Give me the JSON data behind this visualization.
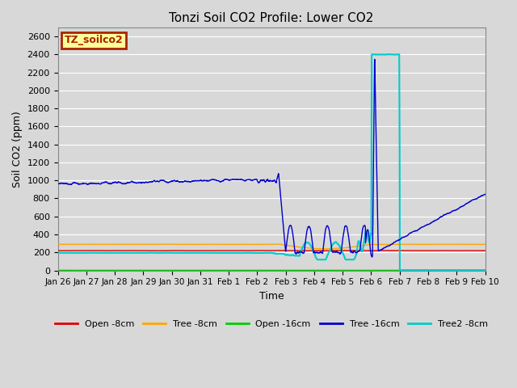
{
  "title": "Tonzi Soil CO2 Profile: Lower CO2",
  "xlabel": "Time",
  "ylabel": "Soil CO2 (ppm)",
  "ylim": [
    0,
    2700
  ],
  "yticks": [
    0,
    200,
    400,
    600,
    800,
    1000,
    1200,
    1400,
    1600,
    1800,
    2000,
    2200,
    2400,
    2600
  ],
  "background_color": "#d8d8d8",
  "plot_bg_color": "#d8d8d8",
  "grid_color": "#ffffff",
  "legend_label": "TZ_soilco2",
  "legend_bg": "#ffff99",
  "legend_border": "#aa2200",
  "series": {
    "open_8cm": {
      "color": "#dd0000",
      "label": "Open -8cm"
    },
    "tree_8cm": {
      "color": "#ffa500",
      "label": "Tree -8cm"
    },
    "open_16cm": {
      "color": "#00cc00",
      "label": "Open -16cm"
    },
    "tree_16cm": {
      "color": "#0000cc",
      "label": "Tree -16cm"
    },
    "tree2_8cm": {
      "color": "#00cccc",
      "label": "Tree2 -8cm"
    }
  },
  "date_start": 0,
  "date_end": 15.0,
  "tick_labels": [
    "Jan 26",
    "Jan 27",
    "Jan 28",
    "Jan 29",
    "Jan 30",
    "Jan 31",
    "Feb 1",
    "Feb 2",
    "Feb 3",
    "Feb 4",
    "Feb 5",
    "Feb 6",
    "Feb 7",
    "Feb 8",
    "Feb 9",
    "Feb 10"
  ],
  "tick_positions": [
    0,
    1,
    2,
    3,
    4,
    5,
    6,
    7,
    8,
    9,
    10,
    11,
    12,
    13,
    14,
    15
  ]
}
